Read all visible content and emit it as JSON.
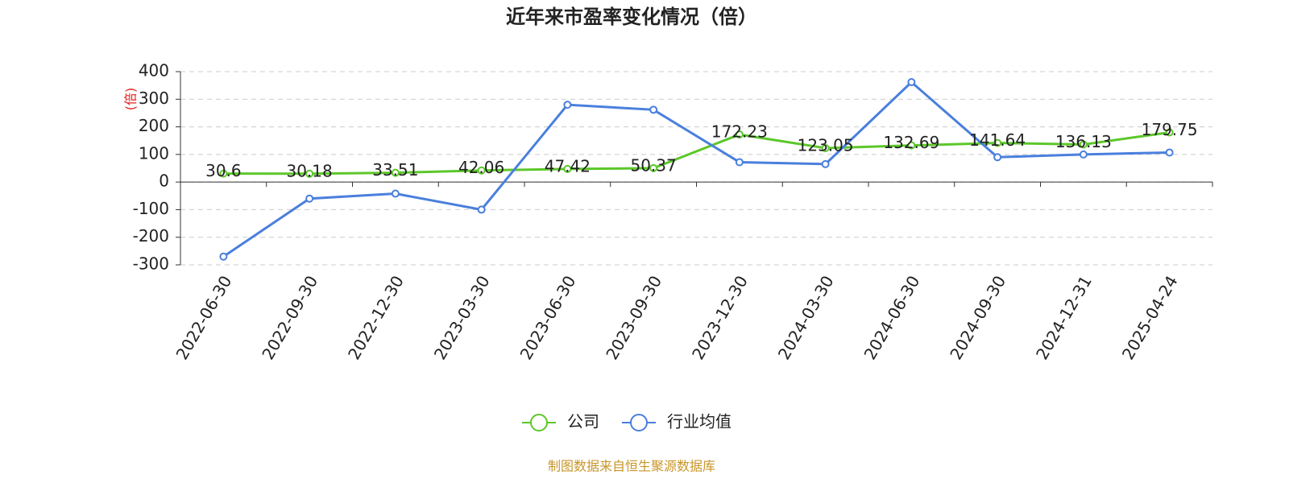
{
  "chart_data": {
    "type": "line",
    "title": "近年来市盈率变化情况（倍）",
    "y_label": "(倍)",
    "source": "制图数据来自恒生聚源数据库",
    "categories": [
      "2022-06-30",
      "2022-09-30",
      "2022-12-30",
      "2023-03-30",
      "2023-06-30",
      "2023-09-30",
      "2023-12-30",
      "2024-03-30",
      "2024-06-30",
      "2024-09-30",
      "2024-12-31",
      "2025-04-24"
    ],
    "series": [
      {
        "name": "公司",
        "color": "#5cc72a",
        "values": [
          30.6,
          30.18,
          33.51,
          42.06,
          47.42,
          50.37,
          172.23,
          123.05,
          132.69,
          141.64,
          136.13,
          179.75
        ],
        "show_labels": true
      },
      {
        "name": "行业均值",
        "color": "#4a7fdd",
        "values": [
          -270,
          -60,
          -42,
          -100,
          280,
          262,
          72,
          65,
          362,
          90,
          100,
          107
        ],
        "show_labels": false
      }
    ],
    "ylim": [
      -300,
      400
    ],
    "yticks": [
      -300,
      -200,
      -100,
      0,
      100,
      200,
      300,
      400
    ],
    "grid": true
  }
}
